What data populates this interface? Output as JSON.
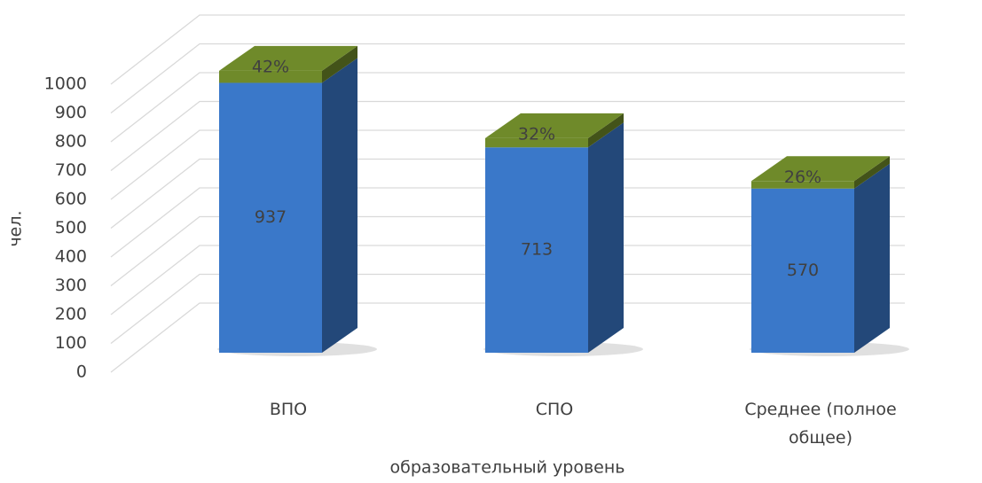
{
  "chart_data": {
    "type": "bar3d_stacked",
    "categories": [
      "ВПО",
      "СПО",
      "Среднее (полное общее)"
    ],
    "series": [
      {
        "color": "#3a78c9",
        "values": [
          937,
          713,
          570
        ]
      },
      {
        "color": "#6f8a2a",
        "values": [
          42,
          32,
          26
        ],
        "value_labels": [
          "42%",
          "32%",
          "26%"
        ]
      }
    ],
    "ylim": [
      0,
      1000
    ],
    "yticks": [
      0,
      100,
      200,
      300,
      400,
      500,
      600,
      700,
      800,
      900,
      1000
    ],
    "grid": true,
    "xlabel": "образовательный уровень",
    "ylabel": "чел."
  }
}
